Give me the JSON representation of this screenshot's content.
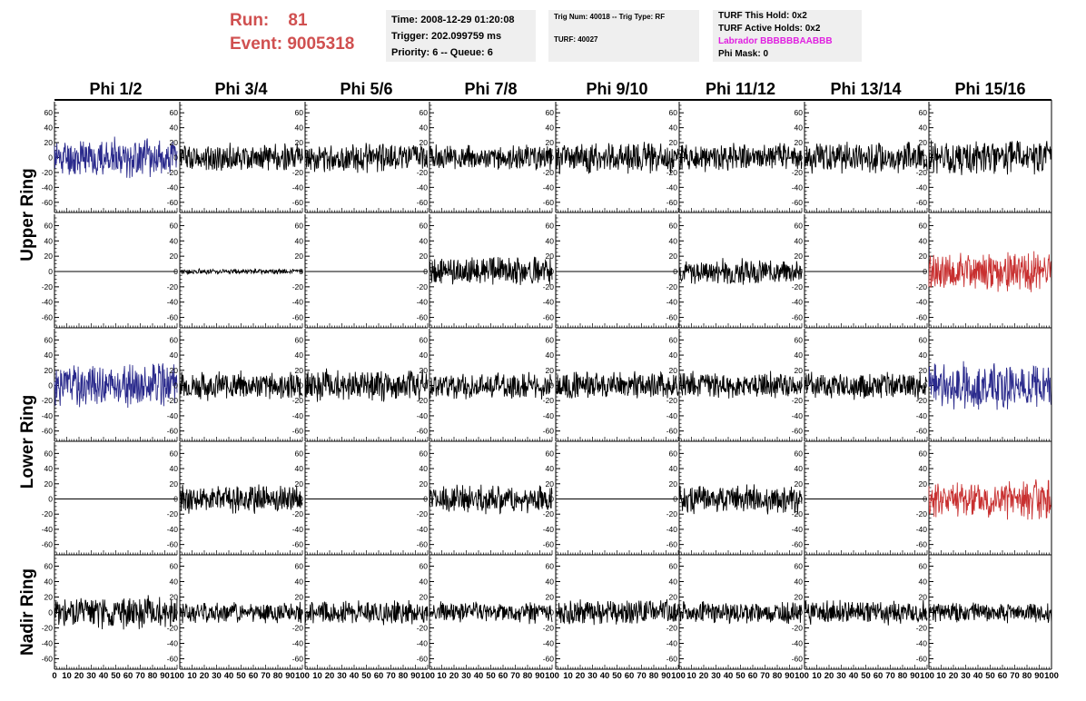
{
  "header": {
    "run_label": "Run:",
    "run_value": "81",
    "event_label": "Event:",
    "event_value": "9005318",
    "time_box": {
      "time": "Time: 2008-12-29 01:20:08",
      "trigger": "Trigger: 202.099759 ms",
      "priority": "Priority: 6 -- Queue: 6"
    },
    "trig_box": {
      "trig_line": "Trig Num: 40018 -- Trig Type: RF",
      "turf_line": "TURF: 40027"
    },
    "turf_box": {
      "this_hold": "TURF This Hold: 0x2",
      "active_holds": "TURF Active Holds: 0x2",
      "labrador": "Labrador BBBBBBAABBB",
      "phi_mask": "Phi Mask: 0"
    }
  },
  "columns": [
    "Phi 1/2",
    "Phi 3/4",
    "Phi 5/6",
    "Phi 7/8",
    "Phi 9/10",
    "Phi 11/12",
    "Phi 13/14",
    "Phi 15/16"
  ],
  "ring_labels": [
    "Upper Ring",
    "Lower Ring",
    "Nadir Ring"
  ],
  "colors": {
    "run_text": "#d05050",
    "labrador": "#e020e0",
    "trace_black": "#000000",
    "trace_blue": "#2a2a8c",
    "trace_red": "#c83030",
    "box_bg": "#efefef"
  },
  "chart_data": {
    "type": "line",
    "xlim": [
      0,
      100
    ],
    "ylim": [
      -70,
      70
    ],
    "y_ticks": [
      60,
      40,
      20,
      0,
      -20,
      -40,
      -60
    ],
    "x_ticks_first_panel": [
      "0",
      "10",
      "20",
      "30",
      "40",
      "50",
      "60",
      "70",
      "80",
      "90",
      "100"
    ],
    "x_ticks_other_panels": [
      "10",
      "20",
      "30",
      "40",
      "50",
      "60",
      "70",
      "80",
      "90",
      "100"
    ],
    "panels": [
      {
        "row": 0,
        "col": 0,
        "amplitude": 22,
        "color": "blue",
        "seed": 11
      },
      {
        "row": 0,
        "col": 1,
        "amplitude": 16,
        "color": "black",
        "seed": 12
      },
      {
        "row": 0,
        "col": 2,
        "amplitude": 16,
        "color": "black",
        "seed": 13
      },
      {
        "row": 0,
        "col": 3,
        "amplitude": 14,
        "color": "black",
        "seed": 14
      },
      {
        "row": 0,
        "col": 4,
        "amplitude": 18,
        "color": "black",
        "seed": 15
      },
      {
        "row": 0,
        "col": 5,
        "amplitude": 16,
        "color": "black",
        "seed": 16
      },
      {
        "row": 0,
        "col": 6,
        "amplitude": 18,
        "color": "black",
        "seed": 17
      },
      {
        "row": 0,
        "col": 7,
        "amplitude": 20,
        "color": "black",
        "seed": 18
      },
      {
        "row": 1,
        "col": 0,
        "amplitude": 0,
        "color": "black",
        "seed": 21
      },
      {
        "row": 1,
        "col": 1,
        "amplitude": 3,
        "color": "black",
        "seed": 22
      },
      {
        "row": 1,
        "col": 2,
        "amplitude": 0,
        "color": "black",
        "seed": 23
      },
      {
        "row": 1,
        "col": 3,
        "amplitude": 16,
        "color": "black",
        "seed": 24
      },
      {
        "row": 1,
        "col": 4,
        "amplitude": 0,
        "color": "black",
        "seed": 25
      },
      {
        "row": 1,
        "col": 5,
        "amplitude": 14,
        "color": "black",
        "seed": 26
      },
      {
        "row": 1,
        "col": 6,
        "amplitude": 0,
        "color": "black",
        "seed": 27
      },
      {
        "row": 1,
        "col": 7,
        "amplitude": 22,
        "color": "red",
        "seed": 28
      },
      {
        "row": 2,
        "col": 0,
        "amplitude": 24,
        "color": "blue",
        "seed": 31
      },
      {
        "row": 2,
        "col": 1,
        "amplitude": 16,
        "color": "black",
        "seed": 32
      },
      {
        "row": 2,
        "col": 2,
        "amplitude": 18,
        "color": "black",
        "seed": 33
      },
      {
        "row": 2,
        "col": 3,
        "amplitude": 15,
        "color": "black",
        "seed": 34
      },
      {
        "row": 2,
        "col": 4,
        "amplitude": 16,
        "color": "black",
        "seed": 35
      },
      {
        "row": 2,
        "col": 5,
        "amplitude": 15,
        "color": "black",
        "seed": 36
      },
      {
        "row": 2,
        "col": 6,
        "amplitude": 16,
        "color": "black",
        "seed": 37
      },
      {
        "row": 2,
        "col": 7,
        "amplitude": 26,
        "color": "blue",
        "seed": 38
      },
      {
        "row": 3,
        "col": 0,
        "amplitude": 0,
        "color": "black",
        "seed": 41
      },
      {
        "row": 3,
        "col": 1,
        "amplitude": 16,
        "color": "black",
        "seed": 42
      },
      {
        "row": 3,
        "col": 2,
        "amplitude": 0,
        "color": "black",
        "seed": 43
      },
      {
        "row": 3,
        "col": 3,
        "amplitude": 16,
        "color": "black",
        "seed": 44
      },
      {
        "row": 3,
        "col": 4,
        "amplitude": 0,
        "color": "black",
        "seed": 45
      },
      {
        "row": 3,
        "col": 5,
        "amplitude": 16,
        "color": "black",
        "seed": 46
      },
      {
        "row": 3,
        "col": 6,
        "amplitude": 0,
        "color": "black",
        "seed": 47
      },
      {
        "row": 3,
        "col": 7,
        "amplitude": 22,
        "color": "red",
        "seed": 48
      },
      {
        "row": 4,
        "col": 0,
        "amplitude": 18,
        "color": "black",
        "seed": 51
      },
      {
        "row": 4,
        "col": 1,
        "amplitude": 12,
        "color": "black",
        "seed": 52
      },
      {
        "row": 4,
        "col": 2,
        "amplitude": 13,
        "color": "black",
        "seed": 53
      },
      {
        "row": 4,
        "col": 3,
        "amplitude": 12,
        "color": "black",
        "seed": 54
      },
      {
        "row": 4,
        "col": 4,
        "amplitude": 14,
        "color": "black",
        "seed": 55
      },
      {
        "row": 4,
        "col": 5,
        "amplitude": 12,
        "color": "black",
        "seed": 56
      },
      {
        "row": 4,
        "col": 6,
        "amplitude": 13,
        "color": "black",
        "seed": 57
      },
      {
        "row": 4,
        "col": 7,
        "amplitude": 11,
        "color": "black",
        "seed": 58
      }
    ]
  }
}
